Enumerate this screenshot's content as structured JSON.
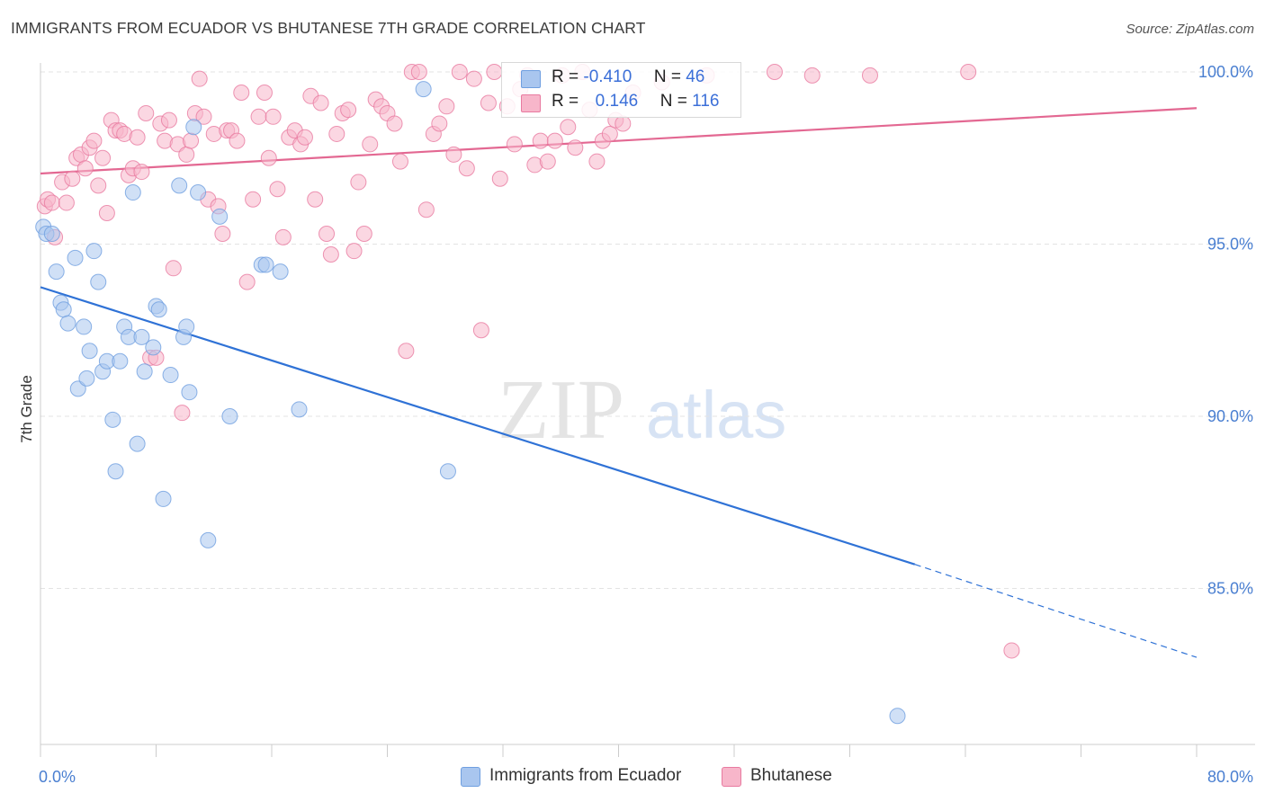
{
  "header": {
    "title": "IMMIGRANTS FROM ECUADOR VS BHUTANESE 7TH GRADE CORRELATION CHART",
    "source": "Source: ZipAtlas.com"
  },
  "watermark": {
    "zip": "ZIP",
    "atlas": "atlas"
  },
  "legend_stats": [
    {
      "r_label": "R =",
      "r_value": "-0.410",
      "n_label": "N =",
      "n_value": "46",
      "color": "#a9c6ef"
    },
    {
      "r_label": "R =",
      "r_value": "0.146",
      "n_label": "N =",
      "n_value": "116",
      "color": "#f7b6ca"
    }
  ],
  "bottom_legend": [
    {
      "label": "Immigrants from Ecuador",
      "color": "#a9c6ef"
    },
    {
      "label": "Bhutanese",
      "color": "#f7b6ca"
    }
  ],
  "chart_data": {
    "type": "scatter",
    "title": "IMMIGRANTS FROM ECUADOR VS BHUTANESE 7TH GRADE CORRELATION CHART",
    "xlabel": "",
    "ylabel": "7th Grade",
    "xlim": [
      0,
      80
    ],
    "ylim": [
      80.5,
      100.8
    ],
    "x_tick_labels": [
      "0.0%",
      "80.0%"
    ],
    "y_ticks": [
      85,
      90,
      95,
      100
    ],
    "y_tick_labels": [
      "85.0%",
      "90.0%",
      "95.0%",
      "100.0%"
    ],
    "grid": true,
    "legend": "top-center",
    "series": [
      {
        "name": "Immigrants from Ecuador",
        "color": "#6f9fe0",
        "fill": "#a9c6ef",
        "trend": {
          "x0": 0,
          "y0": 93.75,
          "x1": 60.5,
          "y1": 85.7,
          "dash_to_x": 80,
          "dash_to_y": 83.0
        },
        "points": [
          [
            0.2,
            95.5
          ],
          [
            0.4,
            95.3
          ],
          [
            0.8,
            95.3
          ],
          [
            1.1,
            94.2
          ],
          [
            1.4,
            93.3
          ],
          [
            1.6,
            93.1
          ],
          [
            1.9,
            92.7
          ],
          [
            2.4,
            94.6
          ],
          [
            2.6,
            90.8
          ],
          [
            3.0,
            92.6
          ],
          [
            3.2,
            91.1
          ],
          [
            3.4,
            91.9
          ],
          [
            3.7,
            94.8
          ],
          [
            4.0,
            93.9
          ],
          [
            4.3,
            91.3
          ],
          [
            4.6,
            91.6
          ],
          [
            5.0,
            89.9
          ],
          [
            5.2,
            88.4
          ],
          [
            5.5,
            91.6
          ],
          [
            5.8,
            92.6
          ],
          [
            6.1,
            92.3
          ],
          [
            6.4,
            96.5
          ],
          [
            6.7,
            89.2
          ],
          [
            7.0,
            92.3
          ],
          [
            7.2,
            91.3
          ],
          [
            7.8,
            92.0
          ],
          [
            8.0,
            93.2
          ],
          [
            8.2,
            93.1
          ],
          [
            8.5,
            87.6
          ],
          [
            9.0,
            91.2
          ],
          [
            9.6,
            96.7
          ],
          [
            9.9,
            92.3
          ],
          [
            10.1,
            92.6
          ],
          [
            10.3,
            90.7
          ],
          [
            10.6,
            98.4
          ],
          [
            10.9,
            96.5
          ],
          [
            11.6,
            86.4
          ],
          [
            12.4,
            95.8
          ],
          [
            13.1,
            90.0
          ],
          [
            15.3,
            94.4
          ],
          [
            15.6,
            94.4
          ],
          [
            16.6,
            94.2
          ],
          [
            17.9,
            90.2
          ],
          [
            26.5,
            99.5
          ],
          [
            28.2,
            88.4
          ],
          [
            59.3,
            81.3
          ]
        ]
      },
      {
        "name": "Bhutanese",
        "color": "#e87aa0",
        "fill": "#f7b6ca",
        "trend": {
          "x0": 0,
          "y0": 97.05,
          "x1": 80,
          "y1": 98.95
        },
        "points": [
          [
            0.3,
            96.1
          ],
          [
            0.5,
            96.3
          ],
          [
            0.8,
            96.2
          ],
          [
            1.0,
            95.2
          ],
          [
            1.5,
            96.8
          ],
          [
            1.8,
            96.2
          ],
          [
            2.2,
            96.9
          ],
          [
            2.5,
            97.5
          ],
          [
            2.8,
            97.6
          ],
          [
            3.1,
            97.2
          ],
          [
            3.4,
            97.8
          ],
          [
            3.7,
            98.0
          ],
          [
            4.0,
            96.7
          ],
          [
            4.3,
            97.5
          ],
          [
            4.6,
            95.9
          ],
          [
            4.9,
            98.6
          ],
          [
            5.2,
            98.3
          ],
          [
            5.5,
            98.3
          ],
          [
            5.8,
            98.2
          ],
          [
            6.1,
            97.0
          ],
          [
            6.4,
            97.2
          ],
          [
            6.7,
            98.1
          ],
          [
            7.0,
            97.1
          ],
          [
            7.3,
            98.8
          ],
          [
            7.6,
            91.7
          ],
          [
            8.0,
            91.7
          ],
          [
            8.3,
            98.5
          ],
          [
            8.6,
            98.0
          ],
          [
            8.9,
            98.6
          ],
          [
            9.2,
            94.3
          ],
          [
            9.5,
            97.9
          ],
          [
            9.8,
            90.1
          ],
          [
            10.1,
            97.6
          ],
          [
            10.4,
            98.0
          ],
          [
            10.7,
            98.8
          ],
          [
            11.0,
            99.8
          ],
          [
            11.3,
            98.7
          ],
          [
            11.6,
            96.3
          ],
          [
            12.0,
            98.2
          ],
          [
            12.3,
            96.1
          ],
          [
            12.6,
            95.3
          ],
          [
            12.9,
            98.3
          ],
          [
            13.2,
            98.3
          ],
          [
            13.6,
            98.0
          ],
          [
            13.9,
            99.4
          ],
          [
            14.3,
            93.9
          ],
          [
            14.7,
            96.3
          ],
          [
            15.1,
            98.7
          ],
          [
            15.5,
            99.4
          ],
          [
            15.8,
            97.5
          ],
          [
            16.1,
            98.7
          ],
          [
            16.4,
            96.6
          ],
          [
            16.8,
            95.2
          ],
          [
            17.2,
            98.1
          ],
          [
            17.6,
            98.3
          ],
          [
            18.0,
            97.9
          ],
          [
            18.3,
            98.1
          ],
          [
            18.7,
            99.3
          ],
          [
            19.0,
            96.3
          ],
          [
            19.4,
            99.1
          ],
          [
            19.8,
            95.3
          ],
          [
            20.1,
            94.7
          ],
          [
            20.5,
            98.2
          ],
          [
            20.9,
            98.8
          ],
          [
            21.3,
            98.9
          ],
          [
            21.7,
            94.8
          ],
          [
            22.0,
            96.8
          ],
          [
            22.4,
            95.3
          ],
          [
            22.8,
            97.9
          ],
          [
            23.2,
            99.2
          ],
          [
            23.6,
            99.0
          ],
          [
            24.0,
            98.8
          ],
          [
            24.5,
            98.5
          ],
          [
            24.9,
            97.4
          ],
          [
            25.3,
            91.9
          ],
          [
            25.7,
            100.0
          ],
          [
            26.2,
            100.0
          ],
          [
            26.7,
            96.0
          ],
          [
            27.2,
            98.2
          ],
          [
            27.6,
            98.5
          ],
          [
            28.1,
            99.0
          ],
          [
            28.6,
            97.6
          ],
          [
            29.0,
            100.0
          ],
          [
            29.5,
            97.2
          ],
          [
            30.0,
            99.8
          ],
          [
            30.5,
            92.5
          ],
          [
            31.0,
            99.1
          ],
          [
            31.4,
            100.0
          ],
          [
            31.8,
            96.9
          ],
          [
            32.3,
            99.0
          ],
          [
            32.8,
            97.9
          ],
          [
            33.2,
            99.5
          ],
          [
            33.7,
            99.9
          ],
          [
            34.2,
            97.3
          ],
          [
            34.6,
            98.0
          ],
          [
            35.1,
            97.4
          ],
          [
            35.6,
            98.0
          ],
          [
            36.1,
            99.9
          ],
          [
            36.5,
            98.4
          ],
          [
            37.0,
            97.8
          ],
          [
            37.5,
            100.0
          ],
          [
            38.0,
            98.9
          ],
          [
            38.5,
            97.4
          ],
          [
            38.9,
            98.0
          ],
          [
            39.4,
            98.2
          ],
          [
            39.8,
            98.6
          ],
          [
            40.3,
            98.5
          ],
          [
            41.0,
            99.4
          ],
          [
            43.0,
            99.7
          ],
          [
            46.1,
            99.9
          ],
          [
            50.8,
            100.0
          ],
          [
            53.4,
            99.9
          ],
          [
            57.4,
            99.9
          ],
          [
            64.2,
            100.0
          ],
          [
            67.2,
            83.2
          ]
        ]
      }
    ]
  }
}
